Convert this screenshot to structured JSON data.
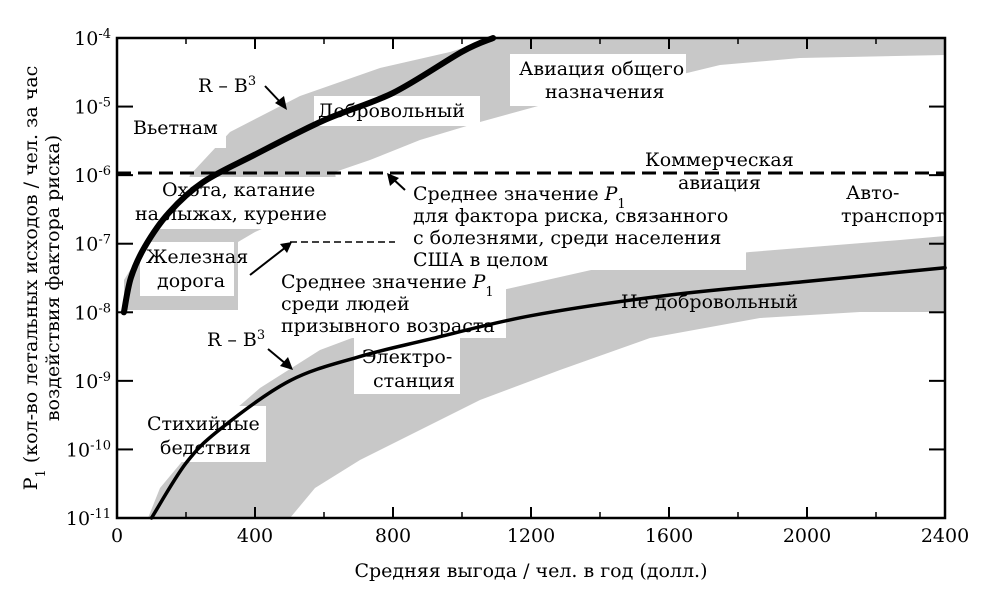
{
  "chart_data": {
    "type": "line",
    "xlabel": "Средняя выгода / чел. в год (долл.)",
    "ylabel_line1": "P",
    "ylabel_sub": "1",
    "ylabel_line1_rest": " (кол-во летальных исходов / чел. за час",
    "ylabel_line2": "воздействия фактора риска)",
    "xlim": [
      0,
      2400
    ],
    "ylim_log10": [
      -11,
      -4
    ],
    "y_scale": "log",
    "x_ticks": [
      {
        "value": 0,
        "label": "0"
      },
      {
        "value": 400,
        "label": "400"
      },
      {
        "value": 800,
        "label": "800"
      },
      {
        "value": 1200,
        "label": "1200"
      },
      {
        "value": 1600,
        "label": "1600"
      },
      {
        "value": 2000,
        "label": "2000"
      },
      {
        "value": 2400,
        "label": "2400"
      }
    ],
    "y_ticks": [
      {
        "exp": -4,
        "base": "10",
        "power": "-4"
      },
      {
        "exp": -5,
        "base": "10",
        "power": "-5"
      },
      {
        "exp": -6,
        "base": "10",
        "power": "-6"
      },
      {
        "exp": -7,
        "base": "10",
        "power": "-7"
      },
      {
        "exp": -8,
        "base": "10",
        "power": "-8"
      },
      {
        "exp": -9,
        "base": "10",
        "power": "-9"
      },
      {
        "exp": -10,
        "base": "10",
        "power": "-10"
      },
      {
        "exp": -11,
        "base": "10",
        "power": "-11"
      }
    ],
    "series": [
      {
        "name": "Добровольный",
        "points": [
          [
            20,
            -8.0
          ],
          [
            40,
            -7.5
          ],
          [
            80,
            -7.05
          ],
          [
            150,
            -6.55
          ],
          [
            250,
            -6.1
          ],
          [
            400,
            -5.7
          ],
          [
            600,
            -5.2
          ],
          [
            800,
            -4.8
          ],
          [
            1000,
            -4.2
          ],
          [
            1090,
            -4.0
          ]
        ]
      },
      {
        "name": "Не добровольный",
        "points": [
          [
            100,
            -11.0
          ],
          [
            200,
            -10.2
          ],
          [
            300,
            -9.7
          ],
          [
            500,
            -9.0
          ],
          [
            700,
            -8.65
          ],
          [
            900,
            -8.4
          ],
          [
            1200,
            -8.05
          ],
          [
            1600,
            -7.75
          ],
          [
            2000,
            -7.55
          ],
          [
            2400,
            -7.35
          ]
        ]
      }
    ],
    "reference_lines": [
      {
        "label": "Коммерческая авиация",
        "y_exp": -6,
        "x_range": [
          0,
          2400
        ]
      },
      {
        "label": "Среднее значение P1 среди людей призывного возраста",
        "y_exp": -7,
        "x_range": [
          500,
          800
        ]
      }
    ]
  },
  "labels": {
    "voluntary_curve": "R – B",
    "voluntary_curve_sup": "3",
    "involuntary_curve": "R – B",
    "involuntary_curve_sup": "3",
    "vietnam": "Вьетнам",
    "voluntary": "Добровольный",
    "general_aviation_1": "Авиация общего",
    "general_aviation_2": "назначения",
    "commercial_1": "Коммерческая",
    "commercial_2": "авиация",
    "hunting_1": "Охота, катание",
    "hunting_2": "на лыжах, курение",
    "mean_disease_1": "Среднее значение ",
    "mean_disease_1_var": "P",
    "mean_disease_1_sub": "1",
    "mean_disease_2": "для фактора риска, связанного",
    "mean_disease_3": "с  болезнями,  среди  населения",
    "mean_disease_4": "США в целом",
    "auto_1": "Авто-",
    "auto_2": "транспорт",
    "railroad_1": "Железная",
    "railroad_2": "дорога",
    "mean_draft_1": "Среднее значение ",
    "mean_draft_1_var": "P",
    "mean_draft_1_sub": "1",
    "mean_draft_2": "среди людей",
    "mean_draft_3": "призывного возраста",
    "involuntary": "Не добровольный",
    "power_station_1": "Электро-",
    "power_station_2": "станция",
    "disasters_1": "Стихийные",
    "disasters_2": "бедствия"
  }
}
